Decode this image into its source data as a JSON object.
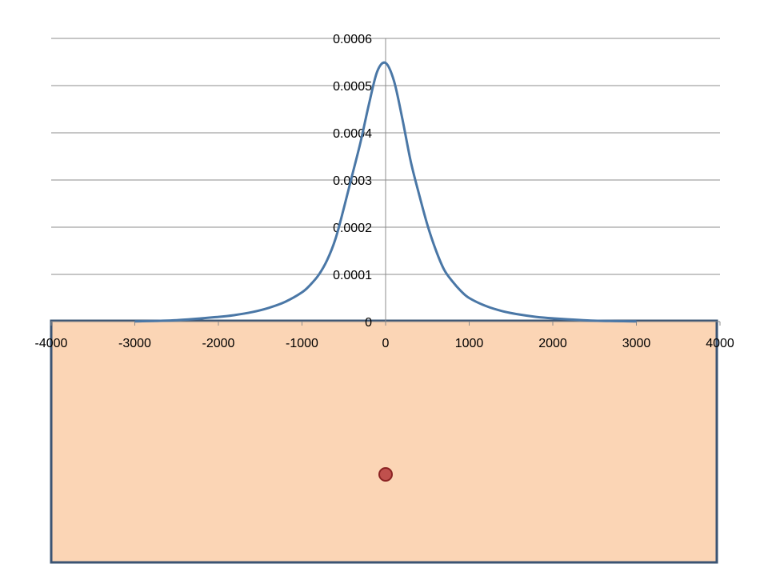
{
  "colors": {
    "curve": "#4a77a6",
    "rect_fill": "#fbd5b5",
    "rect_border": "#3b5473",
    "marker_fill": "#c0504d",
    "marker_stroke": "#8b2323",
    "grid": "#8c8c8c",
    "text": "#000000"
  },
  "chart_data": {
    "type": "line",
    "title": "",
    "xlabel": "",
    "ylabel": "",
    "xlim": [
      -4000,
      4000
    ],
    "ylim": [
      0,
      0.0006
    ],
    "x_ticks": [
      "-4000",
      "-3000",
      "-2000",
      "-1000",
      "0",
      "1000",
      "2000",
      "3000",
      "4000"
    ],
    "y_ticks": [
      "0",
      "0.0001",
      "0.0002",
      "0.0003",
      "0.0004",
      "0.0005",
      "0.0006"
    ],
    "grid": "horizontal",
    "legend": "none",
    "series": [
      {
        "x": [
          -3000,
          -2500,
          -2000,
          -1800,
          -1600,
          -1400,
          -1200,
          -1000,
          -900,
          -800,
          -700,
          -600,
          -500,
          -400,
          -300,
          -200,
          -100,
          0,
          100,
          200,
          300,
          400,
          500,
          600,
          700,
          800,
          900,
          1000,
          1200,
          1400,
          1600,
          1800,
          2000,
          2500,
          3000
        ],
        "y": [
          5e-07,
          3e-06,
          1e-05,
          1.4e-05,
          2e-05,
          2.9e-05,
          4.2e-05,
          6.2e-05,
          7.8e-05,
          9.9e-05,
          0.00013,
          0.000175,
          0.00024,
          0.00031,
          0.00038,
          0.00046,
          0.00053,
          0.000548,
          0.00051,
          0.00043,
          0.00034,
          0.00027,
          0.000205,
          0.000152,
          0.00011,
          8.5e-05,
          6.5e-05,
          5e-05,
          3.3e-05,
          2.2e-05,
          1.5e-05,
          1e-05,
          7e-06,
          2e-06,
          5e-07
        ]
      }
    ],
    "annotations": [
      {
        "type": "filled-rectangle",
        "x_range": [
          -4000,
          4000
        ],
        "y_top": 0,
        "description": "shaded region below the x-axis"
      },
      {
        "type": "point-marker",
        "x": 0
      }
    ]
  }
}
